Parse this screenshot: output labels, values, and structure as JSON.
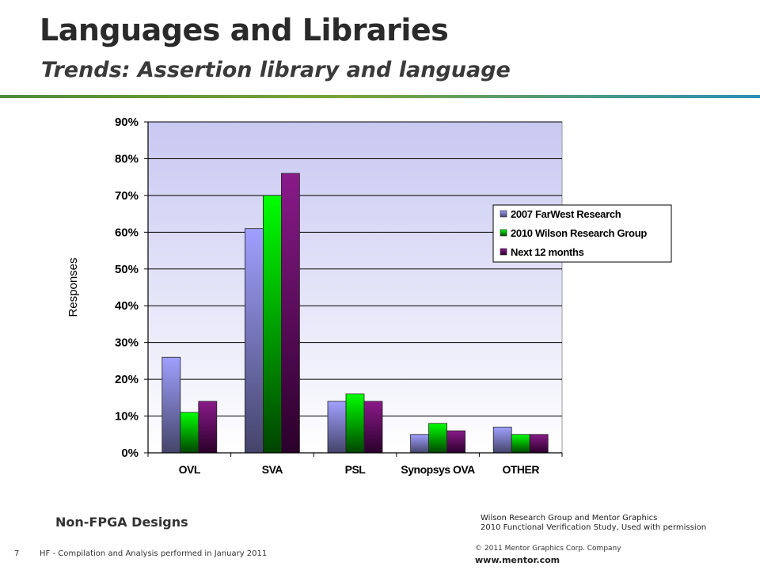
{
  "slide": {
    "title": "Languages and Libraries",
    "subtitle": "Trends: Assertion library and language",
    "note": "Non-FPGA Designs",
    "source_line1": "Wilson Research Group and Mentor Graphics",
    "source_line2": "2010 Functional Verification Study,  Used with permission",
    "page_number": "7",
    "footer_note": "HF - Compilation and Analysis performed in January 2011",
    "copyright": "© 2011 Mentor Graphics Corp. Company",
    "website": "www.mentor.com"
  },
  "chart_data": {
    "type": "bar",
    "title": "",
    "xlabel": "",
    "ylabel": "Responses",
    "categories": [
      "OVL",
      "SVA",
      "PSL",
      "Synopsys OVA",
      "OTHER"
    ],
    "series": [
      {
        "name": "2007 FarWest Research",
        "values": [
          26,
          61,
          14,
          5,
          7
        ],
        "color_top": "#a0a0ff",
        "color_bottom": "#44446a"
      },
      {
        "name": "2010 Wilson Research Group",
        "values": [
          11,
          70,
          16,
          8,
          5
        ],
        "color_top": "#00ff00",
        "color_bottom": "#004400"
      },
      {
        "name": "Next 12 months",
        "values": [
          14,
          76,
          14,
          6,
          5
        ],
        "color_top": "#8a1a8a",
        "color_bottom": "#2a002a"
      }
    ],
    "ylim": [
      0,
      90
    ],
    "yticks": [
      "0%",
      "10%",
      "20%",
      "30%",
      "40%",
      "50%",
      "60%",
      "70%",
      "80%",
      "90%"
    ],
    "grid": true,
    "legend": "right"
  }
}
